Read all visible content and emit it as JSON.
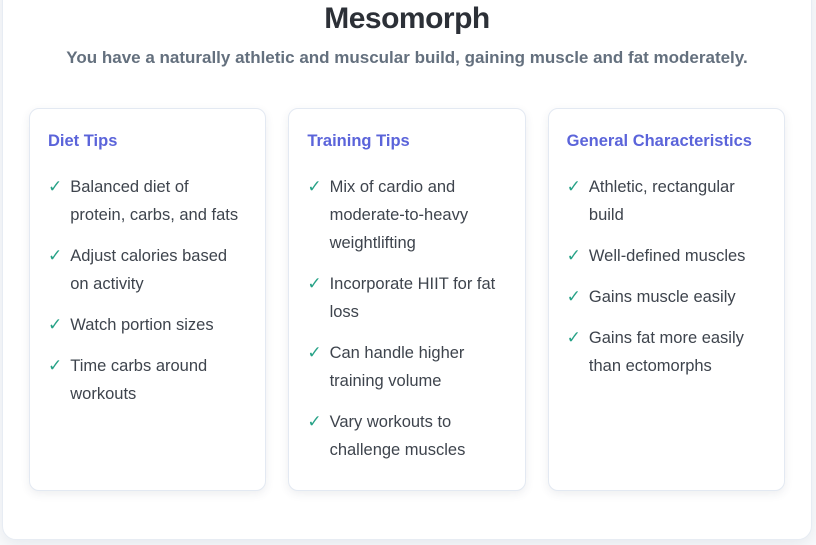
{
  "page": {
    "title": "Mesomorph",
    "subtitle": "You have a naturally athletic and muscular build, gaining muscle and fat moderately."
  },
  "check_icon": "✓",
  "colors": {
    "card_heading_accent": "#5b64da",
    "checkmark": "#27a287",
    "title_text": "#2c3037",
    "subtitle_text": "#64707e",
    "body_text": "#3e444d",
    "card_border": "#e3e9f2",
    "panel_border": "#e7ecf3"
  },
  "cards": [
    {
      "id": "diet-tips",
      "title": "Diet Tips",
      "items": [
        "Balanced diet of protein, carbs, and fats",
        "Adjust calories based on activity",
        "Watch portion sizes",
        "Time carbs around workouts"
      ]
    },
    {
      "id": "training-tips",
      "title": "Training Tips",
      "items": [
        "Mix of cardio and moderate-to-heavy weightlifting",
        "Incorporate HIIT for fat loss",
        "Can handle higher training volume",
        "Vary workouts to challenge muscles"
      ]
    },
    {
      "id": "general-characteristics",
      "title": "General Characteristics",
      "items": [
        "Athletic, rectangular build",
        "Well-defined muscles",
        "Gains muscle easily",
        "Gains fat more easily than ectomorphs"
      ]
    }
  ]
}
